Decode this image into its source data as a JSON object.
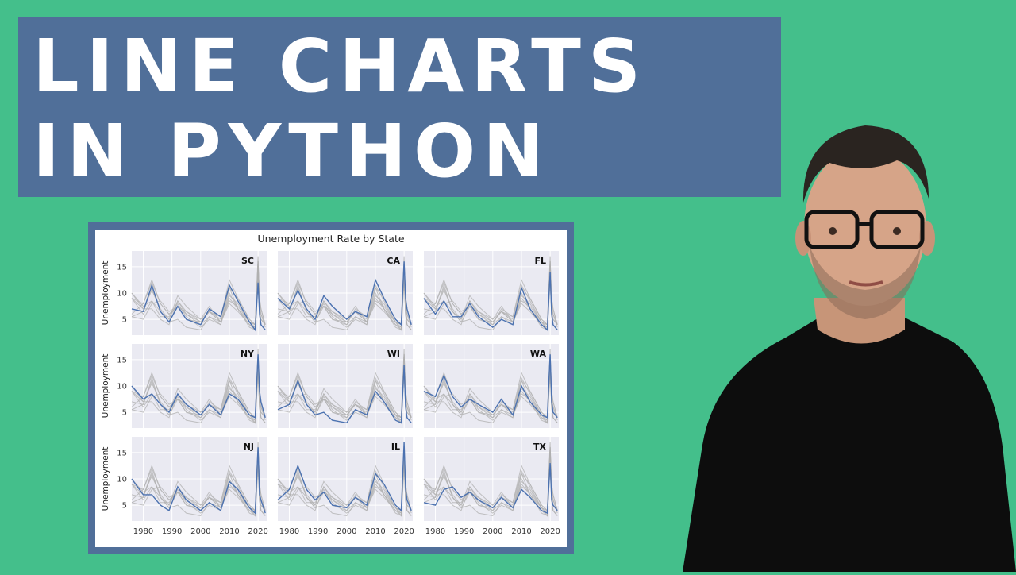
{
  "title": {
    "line1": "LINE CHARTS",
    "line2": "IN PYTHON"
  },
  "colors": {
    "background": "#44bf8b",
    "banner": "#506f99",
    "highlight_line": "#4c72b0",
    "context_lines": "#b0b0b0",
    "panel_bg": "#eaeaf2"
  },
  "chart_data": {
    "type": "line",
    "title": "Unemployment Rate by State",
    "ylabel": "Unemployment",
    "xlabel": "",
    "xlim": [
      1976,
      2023
    ],
    "ylim": [
      2,
      18
    ],
    "xticks": [
      1980,
      1990,
      2000,
      2010,
      2020
    ],
    "yticks": [
      5,
      10,
      15
    ],
    "grid": true,
    "layout": "3x3 small multiples",
    "states": [
      "SC",
      "CA",
      "FL",
      "NY",
      "WI",
      "WA",
      "NJ",
      "IL",
      "TX"
    ],
    "series": [
      {
        "state": "SC",
        "x": [
          1976,
          1980,
          1983,
          1986,
          1989,
          1992,
          1995,
          2000,
          2003,
          2007,
          2010,
          2013,
          2017,
          2019,
          2020,
          2020.5,
          2021,
          2022.5
        ],
        "y": [
          7,
          6.5,
          11.5,
          6.5,
          4.5,
          7.5,
          5,
          4,
          7,
          5.5,
          11.5,
          8.5,
          4.5,
          3,
          12,
          6,
          4,
          3
        ]
      },
      {
        "state": "CA",
        "x": [
          1976,
          1980,
          1983,
          1986,
          1989,
          1992,
          1995,
          2000,
          2003,
          2007,
          2010,
          2013,
          2017,
          2019,
          2020,
          2020.5,
          2021,
          2022.5
        ],
        "y": [
          9,
          7,
          10.5,
          7,
          5,
          9.5,
          7.5,
          5,
          6.5,
          5.5,
          12.5,
          9,
          5,
          4,
          16,
          9,
          7,
          4
        ]
      },
      {
        "state": "FL",
        "x": [
          1976,
          1980,
          1983,
          1986,
          1989,
          1992,
          1995,
          2000,
          2003,
          2007,
          2010,
          2013,
          2017,
          2019,
          2020,
          2020.5,
          2021,
          2022.5
        ],
        "y": [
          9,
          6,
          8.5,
          5.5,
          5.5,
          8,
          5.5,
          3.5,
          5,
          4,
          11,
          7,
          4,
          3,
          14,
          6,
          4,
          3
        ]
      },
      {
        "state": "NY",
        "x": [
          1976,
          1980,
          1983,
          1986,
          1989,
          1992,
          1995,
          2000,
          2003,
          2007,
          2010,
          2013,
          2017,
          2019,
          2020,
          2020.5,
          2021,
          2022.5
        ],
        "y": [
          10,
          7.5,
          8.5,
          6.5,
          5,
          8.5,
          6.5,
          4.5,
          6.5,
          4.5,
          8.5,
          7.5,
          4.5,
          4,
          16,
          9,
          7,
          4
        ]
      },
      {
        "state": "WI",
        "x": [
          1976,
          1980,
          1983,
          1986,
          1989,
          1992,
          1995,
          2000,
          2003,
          2007,
          2010,
          2013,
          2017,
          2019,
          2020,
          2020.5,
          2021,
          2022.5
        ],
        "y": [
          5.5,
          6.5,
          11,
          6.5,
          4.5,
          5,
          3.5,
          3,
          5.5,
          4.5,
          9,
          7,
          3.5,
          3,
          14,
          6,
          4,
          3
        ]
      },
      {
        "state": "WA",
        "x": [
          1976,
          1980,
          1983,
          1986,
          1989,
          1992,
          1995,
          2000,
          2003,
          2007,
          2010,
          2013,
          2017,
          2019,
          2020,
          2020.5,
          2021,
          2022.5
        ],
        "y": [
          9,
          8,
          12,
          8,
          6,
          7.5,
          6.5,
          5,
          7.5,
          4.5,
          10,
          7,
          4.5,
          4,
          16,
          7,
          5,
          4
        ]
      },
      {
        "state": "NJ",
        "x": [
          1976,
          1980,
          1983,
          1986,
          1989,
          1992,
          1995,
          2000,
          2003,
          2007,
          2010,
          2013,
          2017,
          2019,
          2020,
          2020.5,
          2021,
          2022.5
        ],
        "y": [
          10,
          7,
          7,
          5,
          4,
          8.5,
          6,
          4,
          5.5,
          4,
          9.5,
          8,
          4.5,
          3.5,
          16,
          7,
          6,
          3.5
        ]
      },
      {
        "state": "IL",
        "x": [
          1976,
          1980,
          1983,
          1986,
          1989,
          1992,
          1995,
          2000,
          2003,
          2007,
          2010,
          2013,
          2017,
          2019,
          2020,
          2020.5,
          2021,
          2022.5
        ],
        "y": [
          6,
          8,
          12.5,
          8,
          6,
          7.5,
          5,
          4.5,
          6.5,
          5,
          11,
          9,
          5,
          4,
          17,
          8,
          6,
          4
        ]
      },
      {
        "state": "TX",
        "x": [
          1976,
          1980,
          1983,
          1986,
          1989,
          1992,
          1995,
          2000,
          2003,
          2007,
          2010,
          2013,
          2017,
          2019,
          2020,
          2020.5,
          2021,
          2022.5
        ],
        "y": [
          5.5,
          5,
          8,
          8.5,
          6.5,
          7.5,
          6,
          4.5,
          6.5,
          4.5,
          8,
          6.5,
          4,
          3.5,
          13,
          6,
          5,
          4
        ]
      }
    ]
  }
}
